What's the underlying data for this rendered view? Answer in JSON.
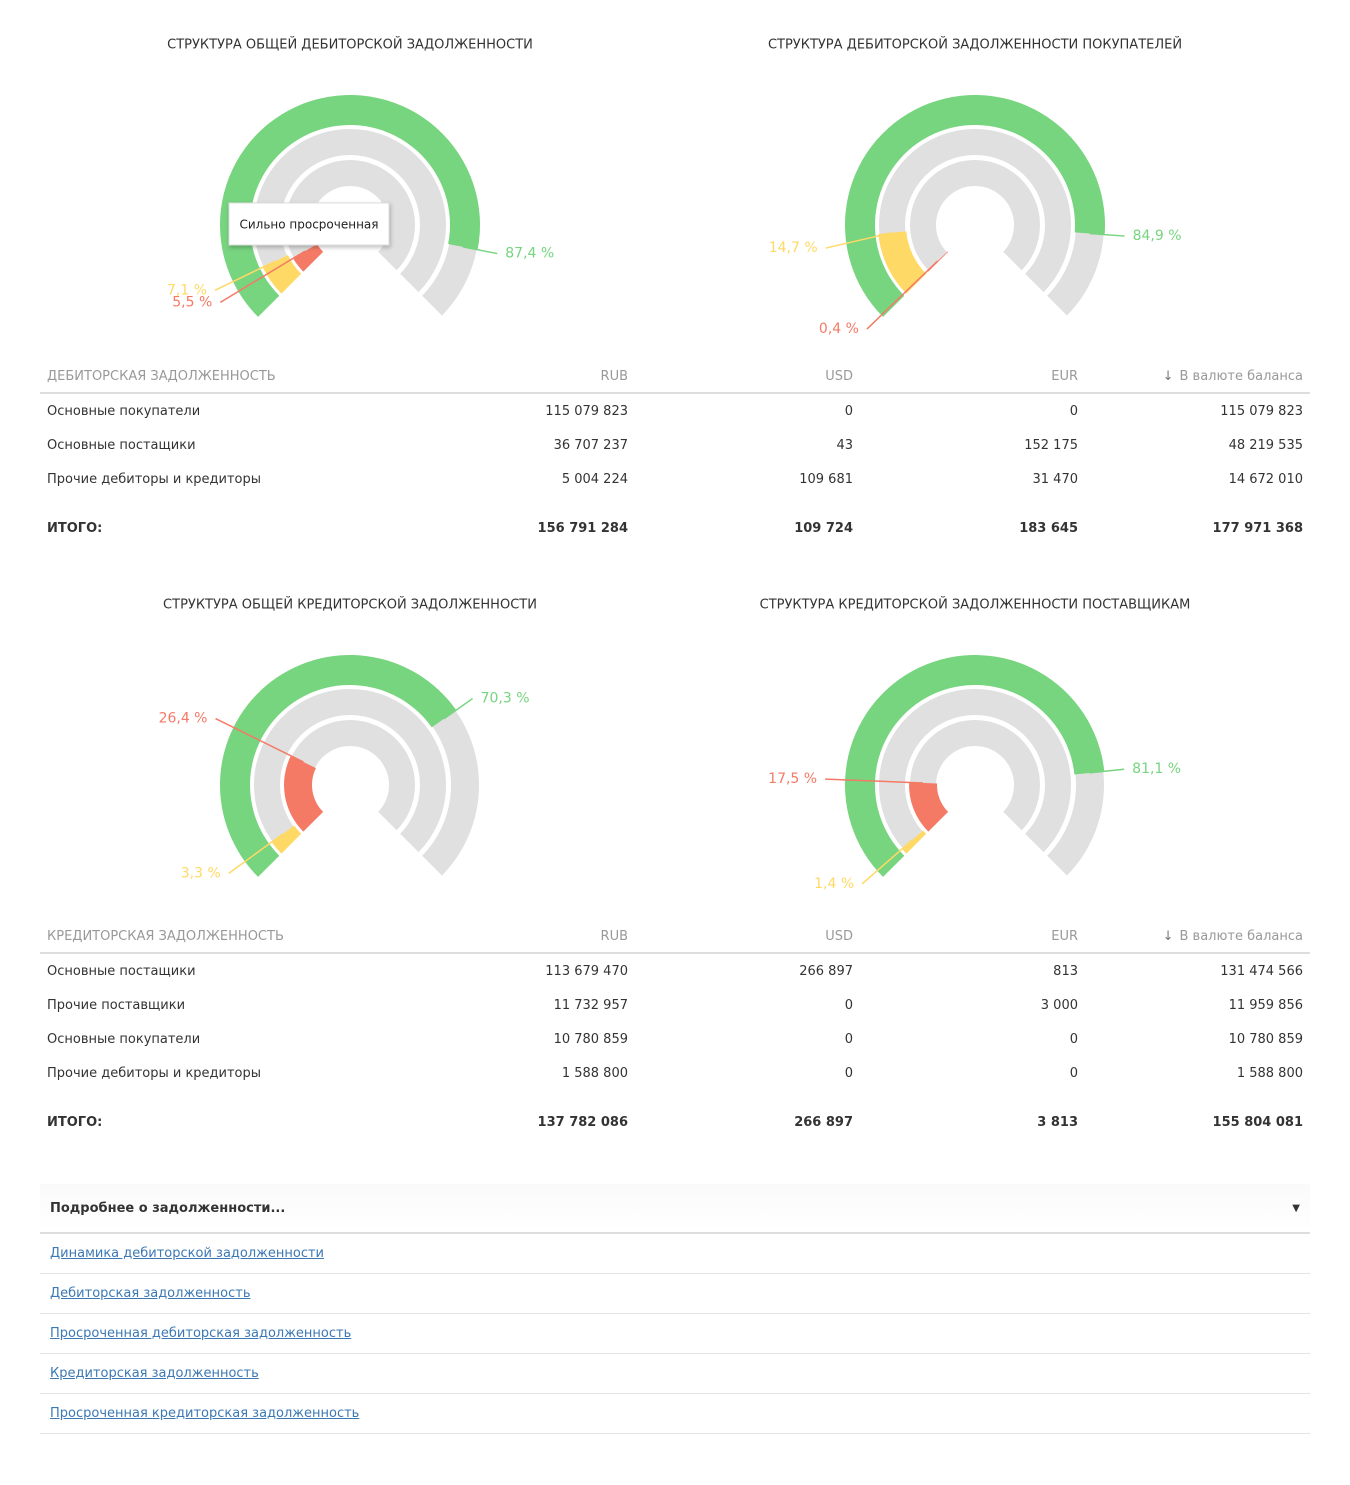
{
  "chart_data": [
    {
      "type": "radialBar",
      "title": "СТРУКТУРА ОБЩЕЙ ДЕБИТОРСКОЙ ЗАДОЛЖЕННОСТИ",
      "ylim": [
        0,
        100
      ],
      "values": [
        87.4,
        7.1,
        5.5
      ],
      "value_labels": [
        "87,4 %",
        "7,1 %",
        "5,5 %"
      ],
      "colors": [
        "#77d47f",
        "#ffd966",
        "#f47a66"
      ],
      "tooltip": "Сильно просроченная"
    },
    {
      "type": "radialBar",
      "title": "СТРУКТУРА ДЕБИТОРСКОЙ ЗАДОЛЖЕННОСТИ ПОКУПАТЕЛЕЙ",
      "ylim": [
        0,
        100
      ],
      "values": [
        84.9,
        14.7,
        0.4
      ],
      "value_labels": [
        "84,9 %",
        "14,7 %",
        "0,4 %"
      ],
      "colors": [
        "#77d47f",
        "#ffd966",
        "#f47a66"
      ]
    },
    {
      "type": "radialBar",
      "title": "СТРУКТУРА ОБЩЕЙ КРЕДИТОРСКОЙ ЗАДОЛЖЕННОСТИ",
      "ylim": [
        0,
        100
      ],
      "values": [
        70.3,
        3.3,
        26.4
      ],
      "value_labels": [
        "70,3 %",
        "3,3 %",
        "26,4 %"
      ],
      "colors": [
        "#77d47f",
        "#ffd966",
        "#f47a66"
      ]
    },
    {
      "type": "radialBar",
      "title": "СТРУКТУРА КРЕДИТОРСКОЙ ЗАДОЛЖЕННОСТИ ПОСТАВЩИКАМ",
      "ylim": [
        0,
        100
      ],
      "values": [
        81.1,
        1.4,
        17.5
      ],
      "value_labels": [
        "81,1 %",
        "1,4 %",
        "17,5 %"
      ],
      "colors": [
        "#77d47f",
        "#ffd966",
        "#f47a66"
      ]
    }
  ],
  "tables": [
    {
      "headers": [
        "ДЕБИТОРСКАЯ ЗАДОЛЖЕННОСТЬ",
        "RUB",
        "USD",
        "EUR",
        "В валюте баланса"
      ],
      "rows": [
        [
          "Основные покупатели",
          "115 079 823",
          "0",
          "0",
          "115 079 823"
        ],
        [
          "Основные постащики",
          "36 707 237",
          "43",
          "152 175",
          "48 219 535"
        ],
        [
          "Прочие дебиторы и кредиторы",
          "5 004 224",
          "109 681",
          "31 470",
          "14 672 010"
        ]
      ],
      "total": [
        "ИТОГО:",
        "156 791 284",
        "109 724",
        "183 645",
        "177 971 368"
      ]
    },
    {
      "headers": [
        "КРЕДИТОРСКАЯ ЗАДОЛЖЕННОСТЬ",
        "RUB",
        "USD",
        "EUR",
        "В валюте баланса"
      ],
      "rows": [
        [
          "Основные постащики",
          "113 679 470",
          "266 897",
          "813",
          "131 474 566"
        ],
        [
          "Прочие поставщики",
          "11 732 957",
          "0",
          "3 000",
          "11 959 856"
        ],
        [
          "Основные покупатели",
          "10 780 859",
          "0",
          "0",
          "10 780 859"
        ],
        [
          "Прочие дебиторы и кредиторы",
          "1 588 800",
          "0",
          "0",
          "1 588 800"
        ]
      ],
      "total": [
        "ИТОГО:",
        "137 782 086",
        "266 897",
        "3 813",
        "155 804 081"
      ]
    }
  ],
  "details": {
    "title": "Подробнее о задолженности...",
    "links": [
      "Динамика дебиторской задолженности",
      "Дебиторская задолженность",
      "Просроченная дебиторская задолженность",
      "Кредиторская задолженность",
      "Просроченная кредиторская задолженность"
    ]
  }
}
